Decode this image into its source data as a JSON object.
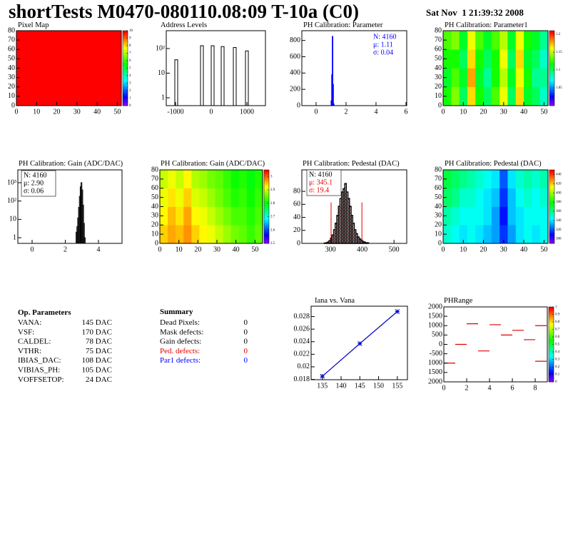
{
  "header": {
    "title": "shortTests M0470-080110.08:09 T-10a (C0)",
    "date": "Sat Nov  1 21:39:32 2008"
  },
  "chart_data": [
    {
      "type": "heatmap",
      "title": "Pixel Map",
      "xlim": [
        0,
        52
      ],
      "ylim": [
        0,
        80
      ],
      "xticks": [
        0,
        10,
        20,
        30,
        40,
        50
      ],
      "yticks": [
        0,
        10,
        20,
        30,
        40,
        50,
        60,
        70,
        80
      ],
      "z": [
        [
          10
        ]
      ],
      "zlim": [
        0,
        10
      ],
      "zticks": [
        0,
        1,
        2,
        3,
        4,
        5,
        6,
        7,
        8,
        9,
        10
      ]
    },
    {
      "type": "spike",
      "title": "Address Levels",
      "log_y": true,
      "xlim": [
        -1260,
        1520
      ],
      "ylim": [
        0.48,
        530
      ],
      "xticks": [
        -1000,
        0,
        1000
      ],
      "yticks": [
        1,
        10,
        {
          "value": 100,
          "label": "10²"
        }
      ],
      "x": [
        -980,
        -260,
        40,
        320,
        660,
        1000
      ],
      "values": [
        35,
        130,
        130,
        120,
        110,
        80
      ],
      "color": "#000000"
    },
    {
      "type": "histogram",
      "title": "PH Calibration: Parameter",
      "xlim": [
        -0.95,
        6.05
      ],
      "ylim": [
        0,
        920
      ],
      "xticks": [
        0,
        2,
        4,
        6
      ],
      "yticks": [
        0,
        200,
        400,
        600,
        800
      ],
      "bins": [
        1.0,
        1.04,
        1.08,
        1.12,
        1.16,
        1.2
      ],
      "values": [
        60,
        380,
        850,
        260,
        20
      ],
      "color": "#0000ff",
      "stats": [
        {
          "text": "N: 4160",
          "color": "#0000ff"
        },
        {
          "text": "μ: 1.11",
          "color": "#0000ff"
        },
        {
          "text": "σ: 0.04",
          "color": "#0000ff"
        }
      ]
    },
    {
      "type": "heatmap",
      "title": "PH Calibration: Parameter1",
      "xlim": [
        0,
        52
      ],
      "ylim": [
        0,
        80
      ],
      "xticks": [
        0,
        10,
        20,
        30,
        40,
        50
      ],
      "yticks": [
        0,
        10,
        20,
        30,
        40,
        50,
        60,
        70,
        80
      ],
      "z": [
        [
          1.12,
          1.14,
          1.1,
          1.17,
          1.12,
          1.1,
          1.13,
          1.16,
          1.1,
          1.17,
          1.11,
          1.1,
          1.08
        ],
        [
          1.11,
          1.13,
          1.11,
          1.18,
          1.11,
          1.09,
          1.12,
          1.15,
          1.11,
          1.16,
          1.12,
          1.09,
          1.09
        ],
        [
          1.12,
          1.12,
          1.1,
          1.17,
          1.12,
          1.1,
          1.12,
          1.16,
          1.1,
          1.17,
          1.11,
          1.1,
          1.08
        ],
        [
          1.13,
          1.14,
          1.11,
          1.16,
          1.13,
          1.11,
          1.13,
          1.15,
          1.11,
          1.16,
          1.12,
          1.11,
          1.09
        ]
      ],
      "zlim": [
        1.0,
        1.21
      ],
      "zticks": [
        1.05,
        1.1,
        1.15,
        1.2
      ]
    },
    {
      "type": "histogram",
      "title": "PH Calibration: Gain (ADC/DAC)",
      "log_y": true,
      "xlim": [
        -0.86,
        5.42
      ],
      "ylim": [
        0.49,
        5000
      ],
      "xticks": [
        0,
        2,
        4
      ],
      "yticks": [
        1,
        10,
        {
          "value": 100,
          "label": "10²"
        },
        {
          "value": 1000,
          "label": "10³"
        }
      ],
      "bins": [
        2.65,
        2.7,
        2.75,
        2.8,
        2.85,
        2.9,
        2.95,
        3.0,
        3.05,
        3.1,
        3.15,
        3.2
      ],
      "values": [
        2,
        4,
        12,
        45,
        180,
        600,
        1000,
        400,
        60,
        6,
        1
      ],
      "color": "#000000",
      "stats": [
        {
          "text": "N: 4160",
          "color": "#000000"
        },
        {
          "text": "μ: 2.90",
          "color": "#000000"
        },
        {
          "text": "σ: 0.06",
          "color": "#000000"
        }
      ]
    },
    {
      "type": "heatmap",
      "title": "PH Calibration: Gain (ADC/DAC)",
      "xlim": [
        0,
        54
      ],
      "ylim": [
        0,
        80
      ],
      "xticks": [
        0,
        10,
        20,
        30,
        40,
        50
      ],
      "yticks": [
        0,
        10,
        20,
        30,
        40,
        50,
        60,
        70,
        80
      ],
      "z": [
        [
          2.95,
          2.97,
          2.96,
          2.98,
          2.95,
          2.93,
          2.92,
          2.9,
          2.88,
          2.86,
          2.85,
          2.83,
          2.85
        ],
        [
          2.93,
          2.96,
          2.94,
          2.97,
          2.93,
          2.92,
          2.9,
          2.88,
          2.86,
          2.84,
          2.84,
          2.82,
          2.84
        ],
        [
          2.92,
          2.94,
          2.92,
          2.95,
          2.91,
          2.9,
          2.88,
          2.86,
          2.84,
          2.82,
          2.83,
          2.81,
          2.83
        ],
        [
          2.9,
          2.92,
          2.9,
          2.93,
          2.89,
          2.88,
          2.86,
          2.85,
          2.83,
          2.81,
          2.82,
          2.8,
          2.82
        ]
      ],
      "zlim": [
        2.5,
        3.05
      ],
      "zticks": [
        2.5,
        2.6,
        2.7,
        2.8,
        2.9,
        3
      ]
    },
    {
      "type": "histogram",
      "title": "PH Calibration: Pedestal (DAC)",
      "xlim": [
        210,
        540
      ],
      "ylim": [
        0,
        113
      ],
      "xticks": [
        300,
        400,
        500
      ],
      "yticks": [
        0,
        20,
        40,
        60,
        80
      ],
      "bins": [
        280,
        285,
        290,
        295,
        300,
        305,
        310,
        315,
        320,
        325,
        330,
        335,
        340,
        345,
        350,
        355,
        360,
        365,
        370,
        375,
        380,
        385,
        390,
        395,
        400,
        405,
        410,
        415,
        420
      ],
      "values": [
        0.5,
        1,
        2,
        4,
        8,
        13,
        21,
        31,
        43,
        57,
        69,
        79,
        84,
        92,
        79,
        69,
        57,
        43,
        31,
        21,
        15,
        10,
        7,
        5,
        3,
        2,
        1,
        1
      ],
      "color": "#000000",
      "fill_style": "hatched",
      "fill_color": "#e00000",
      "cut_lines": [
        302,
        399
      ],
      "cut_height": 63,
      "cut_color": "#e00000",
      "stats": [
        {
          "text": "N: 4160",
          "color": "#000000"
        },
        {
          "text": "μ: 345.1",
          "color": "#e00000"
        },
        {
          "text": "σ: 19.4",
          "color": "#e00000"
        }
      ]
    },
    {
      "type": "heatmap",
      "title": "PH Calibration: Pedestal (DAC)",
      "xlim": [
        0,
        52
      ],
      "ylim": [
        0,
        80
      ],
      "xticks": [
        0,
        10,
        20,
        30,
        40,
        50
      ],
      "yticks": [
        0,
        10,
        20,
        30,
        40,
        50,
        60,
        70,
        80
      ],
      "z": [
        [
          350,
          345,
          340,
          345,
          340,
          335,
          330,
          315,
          330,
          340,
          345,
          340,
          345
        ],
        [
          355,
          350,
          345,
          345,
          345,
          340,
          330,
          310,
          335,
          340,
          345,
          345,
          345
        ],
        [
          365,
          360,
          350,
          350,
          345,
          340,
          335,
          315,
          335,
          345,
          350,
          345,
          350
        ],
        [
          370,
          365,
          360,
          355,
          350,
          345,
          340,
          320,
          340,
          350,
          355,
          350,
          355
        ]
      ],
      "zlim": [
        290,
        450
      ],
      "zticks": [
        300,
        320,
        340,
        360,
        380,
        400,
        420,
        440
      ]
    },
    {
      "type": "line",
      "title": "Iana vs. Vana",
      "xlim": [
        132,
        157.7
      ],
      "ylim": [
        0.01795,
        0.02965
      ],
      "xticks": [
        135,
        140,
        145,
        150,
        155
      ],
      "yticks": [
        0.018,
        0.02,
        0.022,
        0.024,
        0.026,
        0.028
      ],
      "x": [
        135,
        145,
        155
      ],
      "values": [
        0.0185,
        0.0237,
        0.0288
      ],
      "color": "#0000cc"
    },
    {
      "type": "segments",
      "title": "PHRange",
      "xlim": [
        0,
        9.06
      ],
      "ylim": [
        -2000,
        2000
      ],
      "xticks": [
        0,
        2,
        4,
        6,
        8
      ],
      "yticks": [
        {
          "value": -2000,
          "label": "2000"
        },
        {
          "value": -1500,
          "label": "1500"
        },
        {
          "value": -1000,
          "label": "1000"
        },
        -500,
        0,
        500,
        1000,
        1500,
        2000
      ],
      "x": [
        0,
        1,
        2,
        3,
        4,
        5,
        6,
        7,
        8,
        8
      ],
      "values": [
        -1000,
        0,
        1100,
        -350,
        1050,
        500,
        750,
        250,
        1000,
        -900
      ],
      "color": "#e00000",
      "zlim": [
        0,
        1
      ],
      "zticks": [
        0,
        0.1,
        0.2,
        0.3,
        0.4,
        0.5,
        0.6,
        0.7,
        0.8,
        0.9,
        1
      ]
    }
  ],
  "op_parameters": {
    "title": "Op. Parameters",
    "rows": [
      [
        "VANA:",
        "145 DAC"
      ],
      [
        "VSF:",
        "170 DAC"
      ],
      [
        "CALDEL:",
        "78 DAC"
      ],
      [
        "VTHR:",
        "75 DAC"
      ],
      [
        "IBIAS_DAC:",
        "108 DAC"
      ],
      [
        "VIBIAS_PH:",
        "105 DAC"
      ],
      [
        "VOFFSETOP:",
        "24 DAC"
      ]
    ]
  },
  "summary": {
    "title": "Summary",
    "rows": [
      {
        "label": "Dead Pixels:",
        "value": 0,
        "color": "#000000"
      },
      {
        "label": "Mask defects:",
        "value": 0,
        "color": "#000000"
      },
      {
        "label": "Gain defects:",
        "value": 0,
        "color": "#000000"
      },
      {
        "label": "Ped. defects:",
        "value": 0,
        "color": "#e00000"
      },
      {
        "label": "Par1 defects:",
        "value": 0,
        "color": "#0000ff"
      }
    ]
  }
}
